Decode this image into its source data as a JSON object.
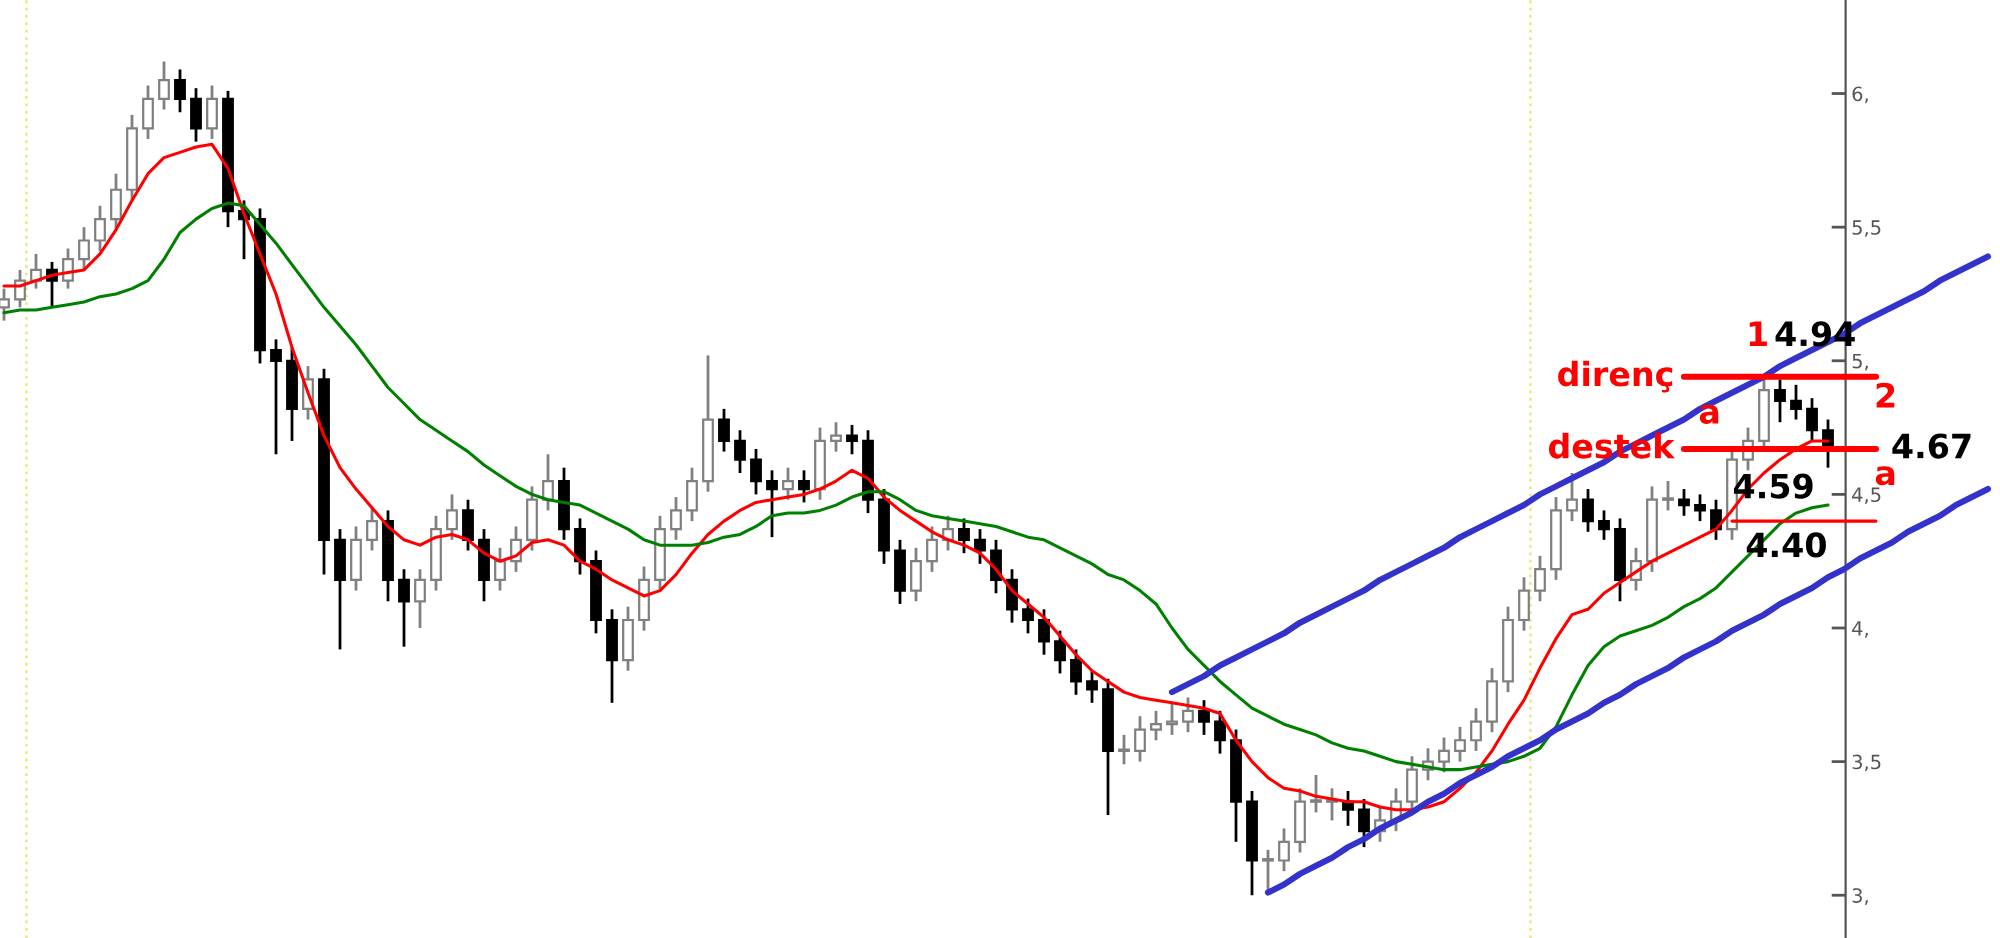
{
  "chart_data": {
    "type": "candlestick",
    "categories": [
      null,
      null,
      null,
      null,
      null,
      null,
      null,
      null,
      null,
      null,
      null,
      null,
      null,
      null,
      null,
      null,
      null,
      null,
      null,
      null,
      null,
      null,
      null,
      null,
      null,
      null,
      null,
      null,
      null,
      null,
      null,
      null,
      null,
      null,
      null,
      null,
      null,
      null,
      null,
      null,
      null,
      null,
      null,
      null,
      null,
      null,
      null,
      null,
      null,
      null,
      null,
      null,
      null,
      null,
      null,
      null,
      null,
      null,
      null,
      null,
      null,
      null,
      null,
      null,
      null,
      null,
      null,
      null,
      null,
      null,
      null,
      null,
      null,
      null,
      null,
      null,
      null,
      null,
      null,
      null,
      null,
      null,
      null,
      null,
      null,
      null,
      null,
      null,
      null,
      null,
      null,
      null,
      null,
      null,
      null,
      null,
      null,
      null,
      null,
      null,
      null,
      null,
      null,
      null,
      null,
      null,
      null,
      null,
      null,
      null,
      null,
      null,
      null,
      null,
      null,
      null,
      null,
      null,
      null,
      null,
      null,
      null,
      null,
      null,
      null
    ],
    "ohlc": [
      [
        5.2,
        5.27,
        5.15,
        5.23
      ],
      [
        5.23,
        5.34,
        5.2,
        5.3
      ],
      [
        5.3,
        5.4,
        5.27,
        5.34
      ],
      [
        5.34,
        5.37,
        5.2,
        5.3
      ],
      [
        5.3,
        5.42,
        5.27,
        5.38
      ],
      [
        5.38,
        5.5,
        5.34,
        5.45
      ],
      [
        5.45,
        5.58,
        5.41,
        5.53
      ],
      [
        5.53,
        5.7,
        5.49,
        5.64
      ],
      [
        5.64,
        5.92,
        5.6,
        5.87
      ],
      [
        5.87,
        6.03,
        5.83,
        5.98
      ],
      [
        5.98,
        6.12,
        5.94,
        6.05
      ],
      [
        6.05,
        6.09,
        5.93,
        5.98
      ],
      [
        5.98,
        6.02,
        5.82,
        5.87
      ],
      [
        5.87,
        6.03,
        5.83,
        5.98
      ],
      [
        5.98,
        6.01,
        5.5,
        5.56
      ],
      [
        5.56,
        5.6,
        5.38,
        5.53
      ],
      [
        5.53,
        5.57,
        4.99,
        5.04
      ],
      [
        5.04,
        5.08,
        4.65,
        5.0
      ],
      [
        5.0,
        5.05,
        4.7,
        4.82
      ],
      [
        4.82,
        4.98,
        4.78,
        4.93
      ],
      [
        4.93,
        4.97,
        4.2,
        4.33
      ],
      [
        4.33,
        4.37,
        3.92,
        4.18
      ],
      [
        4.18,
        4.38,
        4.14,
        4.33
      ],
      [
        4.33,
        4.45,
        4.29,
        4.4
      ],
      [
        4.4,
        4.44,
        4.1,
        4.18
      ],
      [
        4.18,
        4.22,
        3.93,
        4.1
      ],
      [
        4.1,
        4.22,
        4.0,
        4.18
      ],
      [
        4.18,
        4.42,
        4.14,
        4.37
      ],
      [
        4.37,
        4.5,
        4.33,
        4.44
      ],
      [
        4.44,
        4.48,
        4.29,
        4.33
      ],
      [
        4.33,
        4.37,
        4.1,
        4.18
      ],
      [
        4.18,
        4.3,
        4.14,
        4.25
      ],
      [
        4.25,
        4.38,
        4.21,
        4.33
      ],
      [
        4.33,
        4.53,
        4.29,
        4.48
      ],
      [
        4.48,
        4.65,
        4.44,
        4.55
      ],
      [
        4.55,
        4.6,
        4.33,
        4.37
      ],
      [
        4.37,
        4.41,
        4.2,
        4.25
      ],
      [
        4.25,
        4.29,
        3.98,
        4.03
      ],
      [
        4.03,
        4.07,
        3.72,
        3.88
      ],
      [
        3.88,
        4.08,
        3.84,
        4.03
      ],
      [
        4.03,
        4.23,
        3.99,
        4.18
      ],
      [
        4.18,
        4.42,
        4.14,
        4.37
      ],
      [
        4.37,
        4.49,
        4.33,
        4.44
      ],
      [
        4.44,
        4.6,
        4.4,
        4.55
      ],
      [
        4.55,
        5.02,
        4.51,
        4.78
      ],
      [
        4.78,
        4.82,
        4.66,
        4.7
      ],
      [
        4.7,
        4.74,
        4.58,
        4.63
      ],
      [
        4.63,
        4.67,
        4.5,
        4.55
      ],
      [
        4.55,
        4.59,
        4.34,
        4.52
      ],
      [
        4.52,
        4.6,
        4.48,
        4.55
      ],
      [
        4.55,
        4.59,
        4.47,
        4.52
      ],
      [
        4.52,
        4.75,
        4.48,
        4.7
      ],
      [
        4.7,
        4.77,
        4.66,
        4.72
      ],
      [
        4.72,
        4.76,
        4.65,
        4.7
      ],
      [
        4.7,
        4.74,
        4.43,
        4.48
      ],
      [
        4.48,
        4.52,
        4.24,
        4.29
      ],
      [
        4.29,
        4.33,
        4.09,
        4.14
      ],
      [
        4.14,
        4.3,
        4.1,
        4.25
      ],
      [
        4.25,
        4.38,
        4.21,
        4.33
      ],
      [
        4.33,
        4.42,
        4.29,
        4.37
      ],
      [
        4.37,
        4.41,
        4.28,
        4.33
      ],
      [
        4.33,
        4.37,
        4.24,
        4.29
      ],
      [
        4.29,
        4.33,
        4.13,
        4.18
      ],
      [
        4.18,
        4.22,
        4.02,
        4.07
      ],
      [
        4.07,
        4.11,
        3.98,
        4.03
      ],
      [
        4.03,
        4.07,
        3.9,
        3.95
      ],
      [
        3.95,
        3.99,
        3.83,
        3.88
      ],
      [
        3.88,
        3.92,
        3.75,
        3.8
      ],
      [
        3.8,
        3.84,
        3.72,
        3.77
      ],
      [
        3.77,
        3.81,
        3.3,
        3.54
      ],
      [
        3.54,
        3.6,
        3.49,
        3.54
      ],
      [
        3.54,
        3.67,
        3.5,
        3.62
      ],
      [
        3.62,
        3.69,
        3.58,
        3.64
      ],
      [
        3.64,
        3.72,
        3.6,
        3.65
      ],
      [
        3.65,
        3.74,
        3.61,
        3.69
      ],
      [
        3.69,
        3.73,
        3.6,
        3.65
      ],
      [
        3.65,
        3.69,
        3.53,
        3.58
      ],
      [
        3.58,
        3.62,
        3.2,
        3.35
      ],
      [
        3.35,
        3.39,
        3.0,
        3.13
      ],
      [
        3.13,
        3.17,
        3.02,
        3.13
      ],
      [
        3.13,
        3.25,
        3.09,
        3.2
      ],
      [
        3.2,
        3.4,
        3.16,
        3.35
      ],
      [
        3.35,
        3.45,
        3.31,
        3.35
      ],
      [
        3.35,
        3.4,
        3.28,
        3.35
      ],
      [
        3.35,
        3.39,
        3.26,
        3.32
      ],
      [
        3.32,
        3.36,
        3.18,
        3.24
      ],
      [
        3.24,
        3.33,
        3.2,
        3.28
      ],
      [
        3.28,
        3.4,
        3.24,
        3.35
      ],
      [
        3.35,
        3.52,
        3.31,
        3.47
      ],
      [
        3.47,
        3.55,
        3.43,
        3.5
      ],
      [
        3.5,
        3.59,
        3.46,
        3.54
      ],
      [
        3.54,
        3.63,
        3.5,
        3.58
      ],
      [
        3.58,
        3.7,
        3.54,
        3.65
      ],
      [
        3.65,
        3.85,
        3.61,
        3.8
      ],
      [
        3.8,
        4.08,
        3.76,
        4.03
      ],
      [
        4.03,
        4.19,
        3.99,
        4.14
      ],
      [
        4.14,
        4.27,
        4.1,
        4.22
      ],
      [
        4.22,
        4.49,
        4.18,
        4.44
      ],
      [
        4.44,
        4.58,
        4.4,
        4.48
      ],
      [
        4.48,
        4.52,
        4.36,
        4.4
      ],
      [
        4.4,
        4.44,
        4.33,
        4.37
      ],
      [
        4.37,
        4.41,
        4.1,
        4.18
      ],
      [
        4.18,
        4.3,
        4.14,
        4.25
      ],
      [
        4.25,
        4.53,
        4.21,
        4.48
      ],
      [
        4.48,
        4.55,
        4.44,
        4.48
      ],
      [
        4.48,
        4.52,
        4.42,
        4.46
      ],
      [
        4.46,
        4.5,
        4.4,
        4.44
      ],
      [
        4.44,
        4.48,
        4.33,
        4.37
      ],
      [
        4.37,
        4.68,
        4.33,
        4.63
      ],
      [
        4.63,
        4.75,
        4.59,
        4.7
      ],
      [
        4.7,
        4.95,
        4.66,
        4.89
      ],
      [
        4.89,
        4.93,
        4.77,
        4.85
      ],
      [
        4.85,
        4.91,
        4.78,
        4.82
      ],
      [
        4.82,
        4.86,
        4.7,
        4.74
      ],
      [
        4.74,
        4.78,
        4.6,
        4.67
      ],
      null,
      null,
      null,
      null,
      null,
      null,
      null,
      null,
      null,
      null
    ],
    "series": [
      {
        "type": "line",
        "color": "#ff0000",
        "values": [
          5.28,
          5.28,
          5.3,
          5.32,
          5.33,
          5.34,
          5.4,
          5.49,
          5.6,
          5.7,
          5.76,
          5.78,
          5.8,
          5.81,
          5.72,
          5.55,
          5.4,
          5.25,
          5.05,
          4.88,
          4.72,
          4.6,
          4.52,
          4.45,
          4.38,
          4.33,
          4.31,
          4.34,
          4.35,
          4.33,
          4.28,
          4.25,
          4.27,
          4.32,
          4.33,
          4.31,
          4.25,
          4.22,
          4.18,
          4.15,
          4.12,
          4.14,
          4.2,
          4.28,
          4.35,
          4.4,
          4.44,
          4.47,
          4.48,
          4.49,
          4.5,
          4.52,
          4.55,
          4.59,
          4.56,
          4.49,
          4.44,
          4.4,
          4.36,
          4.33,
          4.31,
          4.28,
          4.22,
          4.14,
          4.09,
          4.04,
          3.97,
          3.9,
          3.84,
          3.8,
          3.76,
          3.74,
          3.73,
          3.72,
          3.71,
          3.7,
          3.68,
          3.58,
          3.5,
          3.44,
          3.4,
          3.39,
          3.37,
          3.36,
          3.35,
          3.35,
          3.33,
          3.32,
          3.32,
          3.33,
          3.35,
          3.4,
          3.46,
          3.54,
          3.64,
          3.73,
          3.85,
          3.96,
          4.05,
          4.07,
          4.13,
          4.17,
          4.21,
          4.25,
          4.28,
          4.31,
          4.34,
          4.37,
          4.44,
          4.52,
          4.58,
          4.63,
          4.67,
          4.7,
          4.7,
          null,
          null,
          null,
          null,
          null,
          null,
          null,
          null,
          null,
          null
        ]
      },
      {
        "type": "line",
        "color": "#008000",
        "values": [
          5.18,
          5.19,
          5.19,
          5.2,
          5.21,
          5.22,
          5.24,
          5.25,
          5.27,
          5.3,
          5.38,
          5.48,
          5.53,
          5.57,
          5.59,
          5.58,
          5.51,
          5.44,
          5.36,
          5.28,
          5.2,
          5.13,
          5.06,
          4.98,
          4.9,
          4.84,
          4.78,
          4.74,
          4.7,
          4.66,
          4.61,
          4.57,
          4.53,
          4.5,
          4.48,
          4.47,
          4.46,
          4.43,
          4.4,
          4.37,
          4.33,
          4.31,
          4.31,
          4.31,
          4.32,
          4.34,
          4.35,
          4.38,
          4.42,
          4.43,
          4.43,
          4.44,
          4.46,
          4.49,
          4.51,
          4.51,
          4.48,
          4.44,
          4.42,
          4.41,
          4.4,
          4.39,
          4.38,
          4.36,
          4.34,
          4.33,
          4.3,
          4.27,
          4.24,
          4.2,
          4.18,
          4.14,
          4.09,
          4.0,
          3.92,
          3.86,
          3.8,
          3.75,
          3.7,
          3.67,
          3.64,
          3.62,
          3.6,
          3.57,
          3.55,
          3.54,
          3.52,
          3.5,
          3.49,
          3.48,
          3.47,
          3.47,
          3.48,
          3.49,
          3.5,
          3.52,
          3.55,
          3.63,
          3.75,
          3.86,
          3.93,
          3.97,
          3.99,
          4.01,
          4.04,
          4.08,
          4.11,
          4.15,
          4.21,
          4.27,
          4.33,
          4.39,
          4.43,
          4.45,
          4.46,
          null,
          null,
          null,
          null,
          null,
          null,
          null,
          null,
          null,
          null
        ]
      },
      {
        "type": "line",
        "color": "#3333cc",
        "values": [
          null,
          null,
          null,
          null,
          null,
          null,
          null,
          null,
          null,
          null,
          null,
          null,
          null,
          null,
          null,
          null,
          null,
          null,
          null,
          null,
          null,
          null,
          null,
          null,
          null,
          null,
          null,
          null,
          null,
          null,
          null,
          null,
          null,
          null,
          null,
          null,
          null,
          null,
          null,
          null,
          null,
          null,
          null,
          null,
          null,
          null,
          null,
          null,
          null,
          null,
          null,
          null,
          null,
          null,
          null,
          null,
          null,
          null,
          null,
          null,
          null,
          null,
          null,
          null,
          null,
          null,
          null,
          null,
          null,
          null,
          null,
          null,
          null,
          3.76,
          3.79,
          3.82,
          3.86,
          3.89,
          3.92,
          3.95,
          3.98,
          4.02,
          4.05,
          4.08,
          4.11,
          4.14,
          4.18,
          4.21,
          4.24,
          4.27,
          4.3,
          4.34,
          4.37,
          4.4,
          4.43,
          4.46,
          4.5,
          4.53,
          4.56,
          4.59,
          4.62,
          4.66,
          4.69,
          4.72,
          4.75,
          4.78,
          4.82,
          4.85,
          4.88,
          4.91,
          4.94,
          4.98,
          5.01,
          5.04,
          5.07,
          5.1,
          5.14,
          5.17,
          5.2,
          5.23,
          5.26,
          5.3,
          5.33,
          5.36,
          5.39
        ]
      },
      {
        "type": "line",
        "color": "#3333cc",
        "values": [
          null,
          null,
          null,
          null,
          null,
          null,
          null,
          null,
          null,
          null,
          null,
          null,
          null,
          null,
          null,
          null,
          null,
          null,
          null,
          null,
          null,
          null,
          null,
          null,
          null,
          null,
          null,
          null,
          null,
          null,
          null,
          null,
          null,
          null,
          null,
          null,
          null,
          null,
          null,
          null,
          null,
          null,
          null,
          null,
          null,
          null,
          null,
          null,
          null,
          null,
          null,
          null,
          null,
          null,
          null,
          null,
          null,
          null,
          null,
          null,
          null,
          null,
          null,
          null,
          null,
          null,
          null,
          null,
          null,
          null,
          null,
          null,
          null,
          null,
          null,
          null,
          null,
          null,
          null,
          3.01,
          3.04,
          3.08,
          3.11,
          3.14,
          3.18,
          3.21,
          3.25,
          3.28,
          3.31,
          3.35,
          3.38,
          3.42,
          3.45,
          3.48,
          3.52,
          3.55,
          3.58,
          3.62,
          3.65,
          3.68,
          3.72,
          3.75,
          3.79,
          3.82,
          3.85,
          3.89,
          3.92,
          3.95,
          3.99,
          4.02,
          4.05,
          4.09,
          4.12,
          4.15,
          4.19,
          4.22,
          4.26,
          4.29,
          4.32,
          4.36,
          4.39,
          4.42,
          4.46,
          4.49,
          4.52
        ]
      },
      {
        "type": "line",
        "name": "direnç",
        "color": "#ff0000",
        "values": [
          null,
          null,
          null,
          null,
          null,
          null,
          null,
          null,
          null,
          null,
          null,
          null,
          null,
          null,
          null,
          null,
          null,
          null,
          null,
          null,
          null,
          null,
          null,
          null,
          null,
          null,
          null,
          null,
          null,
          null,
          null,
          null,
          null,
          null,
          null,
          null,
          null,
          null,
          null,
          null,
          null,
          null,
          null,
          null,
          null,
          null,
          null,
          null,
          null,
          null,
          null,
          null,
          null,
          null,
          null,
          null,
          null,
          null,
          null,
          null,
          null,
          null,
          null,
          null,
          null,
          null,
          null,
          null,
          null,
          null,
          null,
          null,
          null,
          null,
          null,
          null,
          null,
          null,
          null,
          null,
          null,
          null,
          null,
          null,
          null,
          null,
          null,
          null,
          null,
          null,
          null,
          null,
          null,
          null,
          null,
          null,
          null,
          null,
          null,
          null,
          null,
          null,
          null,
          null,
          null,
          4.94,
          4.94,
          4.94,
          4.94,
          4.94,
          4.94,
          4.94,
          4.94,
          4.94,
          4.94,
          4.94,
          4.94,
          4.94,
          null,
          null,
          null,
          null,
          null,
          null,
          null
        ]
      },
      {
        "type": "line",
        "name": "destek",
        "color": "#ff0000",
        "values": [
          null,
          null,
          null,
          null,
          null,
          null,
          null,
          null,
          null,
          null,
          null,
          null,
          null,
          null,
          null,
          null,
          null,
          null,
          null,
          null,
          null,
          null,
          null,
          null,
          null,
          null,
          null,
          null,
          null,
          null,
          null,
          null,
          null,
          null,
          null,
          null,
          null,
          null,
          null,
          null,
          null,
          null,
          null,
          null,
          null,
          null,
          null,
          null,
          null,
          null,
          null,
          null,
          null,
          null,
          null,
          null,
          null,
          null,
          null,
          null,
          null,
          null,
          null,
          null,
          null,
          null,
          null,
          null,
          null,
          null,
          null,
          null,
          null,
          null,
          null,
          null,
          null,
          null,
          null,
          null,
          null,
          null,
          null,
          null,
          null,
          null,
          null,
          null,
          null,
          null,
          null,
          null,
          null,
          null,
          null,
          null,
          null,
          null,
          null,
          null,
          null,
          null,
          null,
          null,
          null,
          4.67,
          4.67,
          4.67,
          4.67,
          4.67,
          4.67,
          4.67,
          4.67,
          4.67,
          4.67,
          4.67,
          4.67,
          4.67,
          null,
          null,
          null,
          null,
          null,
          null,
          null
        ]
      },
      {
        "type": "line",
        "color": "#ff0000",
        "values": [
          null,
          null,
          null,
          null,
          null,
          null,
          null,
          null,
          null,
          null,
          null,
          null,
          null,
          null,
          null,
          null,
          null,
          null,
          null,
          null,
          null,
          null,
          null,
          null,
          null,
          null,
          null,
          null,
          null,
          null,
          null,
          null,
          null,
          null,
          null,
          null,
          null,
          null,
          null,
          null,
          null,
          null,
          null,
          null,
          null,
          null,
          null,
          null,
          null,
          null,
          null,
          null,
          null,
          null,
          null,
          null,
          null,
          null,
          null,
          null,
          null,
          null,
          null,
          null,
          null,
          null,
          null,
          null,
          null,
          null,
          null,
          null,
          null,
          null,
          null,
          null,
          null,
          null,
          null,
          null,
          null,
          null,
          null,
          null,
          null,
          null,
          null,
          null,
          null,
          null,
          null,
          null,
          null,
          null,
          null,
          null,
          null,
          null,
          null,
          null,
          null,
          null,
          null,
          null,
          null,
          null,
          null,
          null,
          4.4,
          4.4,
          4.4,
          4.4,
          4.4,
          4.4,
          4.4,
          4.4,
          4.4,
          4.4,
          null,
          null,
          null,
          null,
          null,
          null,
          null
        ]
      }
    ],
    "annotations": [
      "1",
      "4.94",
      "2",
      "a",
      "4.67",
      "a",
      "4.59",
      "4.40"
    ],
    "ylim": [
      2.84,
      6.35
    ],
    "yticks": [
      {
        "value": 3,
        "label": "3,"
      },
      {
        "value": 3.5,
        "label": "3,5"
      },
      {
        "value": 4,
        "label": "4,"
      },
      {
        "value": 4.5,
        "label": "4,5"
      },
      {
        "value": 5,
        "label": "5,"
      },
      {
        "value": 5.5,
        "label": "5,5"
      },
      {
        "value": 6,
        "label": "6,"
      }
    ],
    "tick_labels": "y"
  }
}
